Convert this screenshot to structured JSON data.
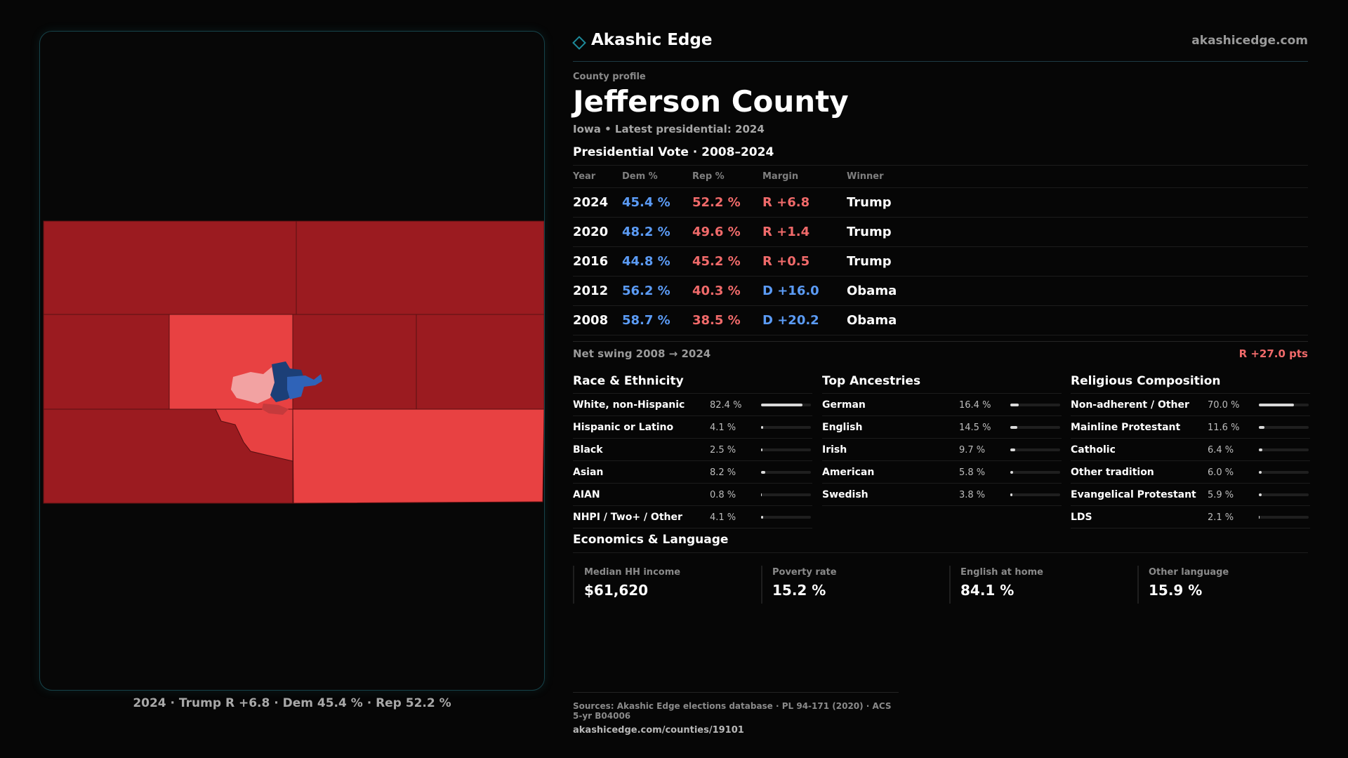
{
  "header": {
    "brand_name": "Akashic Edge",
    "brand_url": "akashicedge.com",
    "brand_icon": "diamond-icon"
  },
  "county": {
    "kicker": "County profile",
    "name": "Jefferson County",
    "subtitle": "Iowa • Latest presidential: 2024"
  },
  "map": {
    "caption": "2024 · Trump R +6.8 · Dem 45.4 % · Rep 52.2 %",
    "colors": {
      "safe_rep": "#9b1b20",
      "lean_rep": "#e84142",
      "light_rep": "#f2a2a2",
      "lean_dem": "#2f63b8",
      "safe_dem": "#1c3f77"
    }
  },
  "vote": {
    "title": "Presidential Vote · 2008–2024",
    "headers": {
      "year": "Year",
      "dem": "Dem %",
      "rep": "Rep %",
      "margin": "Margin",
      "winner": "Winner"
    },
    "rows": [
      {
        "year": "2024",
        "dem": "45.4 %",
        "rep": "52.2 %",
        "margin": "R +6.8",
        "party": "R",
        "winner": "Trump"
      },
      {
        "year": "2020",
        "dem": "48.2 %",
        "rep": "49.6 %",
        "margin": "R +1.4",
        "party": "R",
        "winner": "Trump"
      },
      {
        "year": "2016",
        "dem": "44.8 %",
        "rep": "45.2 %",
        "margin": "R +0.5",
        "party": "R",
        "winner": "Trump"
      },
      {
        "year": "2012",
        "dem": "56.2 %",
        "rep": "40.3 %",
        "margin": "D +16.0",
        "party": "D",
        "winner": "Obama"
      },
      {
        "year": "2008",
        "dem": "58.7 %",
        "rep": "38.5 %",
        "margin": "D +20.2",
        "party": "D",
        "winner": "Obama"
      }
    ],
    "swing_label": "Net swing 2008 → 2024",
    "swing_value": "R +27.0 pts"
  },
  "demographics": [
    {
      "title": "Race & Ethnicity",
      "rows": [
        {
          "label": "White, non-Hispanic",
          "pct": "82.4 %",
          "value": 82.4
        },
        {
          "label": "Hispanic or Latino",
          "pct": "4.1 %",
          "value": 4.1
        },
        {
          "label": "Black",
          "pct": "2.5 %",
          "value": 2.5
        },
        {
          "label": "Asian",
          "pct": "8.2 %",
          "value": 8.2
        },
        {
          "label": "AIAN",
          "pct": "0.8 %",
          "value": 0.8
        },
        {
          "label": "NHPI / Two+ / Other",
          "pct": "4.1 %",
          "value": 4.1
        }
      ]
    },
    {
      "title": "Top Ancestries",
      "rows": [
        {
          "label": "German",
          "pct": "16.4 %",
          "value": 16.4
        },
        {
          "label": "English",
          "pct": "14.5 %",
          "value": 14.5
        },
        {
          "label": "Irish",
          "pct": "9.7 %",
          "value": 9.7
        },
        {
          "label": "American",
          "pct": "5.8 %",
          "value": 5.8
        },
        {
          "label": "Swedish",
          "pct": "3.8 %",
          "value": 3.8
        }
      ]
    },
    {
      "title": "Religious Composition",
      "rows": [
        {
          "label": "Non-adherent / Other",
          "pct": "70.0 %",
          "value": 70.0
        },
        {
          "label": "Mainline Protestant",
          "pct": "11.6 %",
          "value": 11.6
        },
        {
          "label": "Catholic",
          "pct": "6.4 %",
          "value": 6.4
        },
        {
          "label": "Other tradition",
          "pct": "6.0 %",
          "value": 6.0
        },
        {
          "label": "Evangelical Protestant",
          "pct": "5.9 %",
          "value": 5.9
        },
        {
          "label": "LDS",
          "pct": "2.1 %",
          "value": 2.1
        }
      ]
    }
  ],
  "economics": {
    "title": "Economics & Language",
    "cells": [
      {
        "label": "Median HH income",
        "value": "$61,620"
      },
      {
        "label": "Poverty rate",
        "value": "15.2 %"
      },
      {
        "label": "English at home",
        "value": "84.1 %"
      },
      {
        "label": "Other language",
        "value": "15.9 %"
      }
    ]
  },
  "footer": {
    "sources": "Sources: Akashic Edge elections database · PL 94-171 (2020) · ACS 5-yr B04006",
    "url": "akashicedge.com/counties/19101"
  }
}
